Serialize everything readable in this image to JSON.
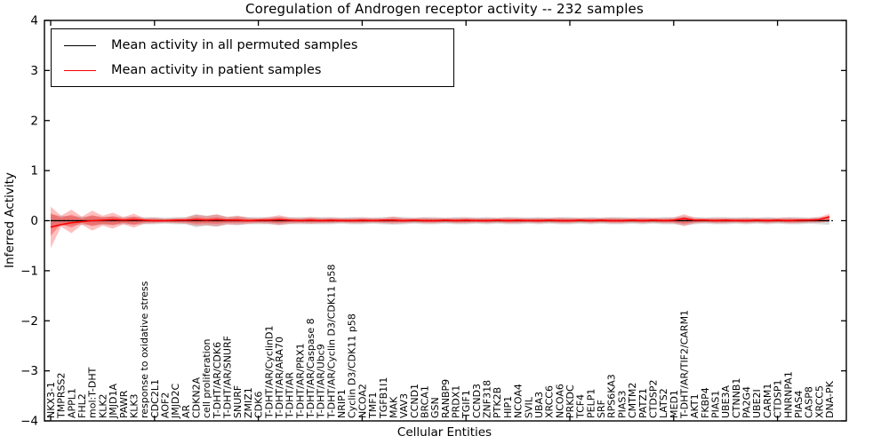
{
  "chart_data": {
    "type": "line",
    "title": "Coregulation of Androgen receptor activity -- 232 samples",
    "xlabel": "Cellular Entities",
    "ylabel": "Inferred Activity",
    "ylim": [
      -4,
      4
    ],
    "grid": false,
    "y_tick_values": [
      4,
      3,
      2,
      1,
      0,
      -1,
      -2,
      -3,
      -4
    ],
    "y_tick_labels": [
      "4",
      "3",
      "2",
      "1",
      "0",
      "−1",
      "−2",
      "−3",
      "−4"
    ],
    "categories": [
      "NKX3-1",
      "TMPRSS2",
      "APPL1",
      "FHL2",
      "mol:T-DHT",
      "KLK2",
      "JMJD1A",
      "PAWR",
      "KLK3",
      "response to oxidative stress",
      "CDC2L1",
      "AOF2",
      "JMJD2C",
      "AR",
      "CDKN2A",
      "cell proliferation",
      "T-DHT/AR/CDK6",
      "T-DHT/AR/SNURF",
      "SNURF",
      "ZMIZ1",
      "CDK6",
      "T-DHT/AR/CyclinD1",
      "T-DHT/AR/ARA70",
      "T-DHT/AR",
      "T-DHT/AR/PRX1",
      "T-DHT/AR/Caspase 8",
      "T-DHT/AR/Ubc9",
      "T-DHT/AR/Cyclin D3/CDK11 p58",
      "NRIP1",
      "Cyclin D3/CDK11 p58",
      "NCOA2",
      "TMF1",
      "TGFB1I1",
      "MAK",
      "VAV3",
      "CCND1",
      "BRCA1",
      "GSN",
      "RANBP9",
      "PRDX1",
      "TGIF1",
      "CCND3",
      "ZNF318",
      "PTK2B",
      "HIP1",
      "NCOA4",
      "SVIL",
      "UBA3",
      "XRCC6",
      "NCOA6",
      "PRKDC",
      "TCF4",
      "PELP1",
      "SRF",
      "RPS6KA3",
      "PIAS3",
      "CMTM2",
      "PATZ1",
      "CTDSP2",
      "LATS2",
      "MED1",
      "T-DHT/AR/TIF2/CARM1",
      "AKT1",
      "FKBP4",
      "PIAS1",
      "UBE3A",
      "CTNNB1",
      "PA2G4",
      "UBE2I",
      "CARM1",
      "CTDSP1",
      "HNRNPA1",
      "PIAS4",
      "CASP8",
      "XRCC5",
      "DNA-PK"
    ],
    "series": [
      {
        "name": "Mean activity in all permuted samples",
        "color": "#000000",
        "values": [
          0,
          0,
          0,
          0,
          0,
          0,
          0,
          0,
          0,
          0,
          0,
          0,
          0,
          0,
          0,
          0,
          0,
          0,
          0,
          0,
          0,
          0,
          0,
          0,
          0,
          0,
          0,
          0,
          0,
          0,
          0,
          0,
          0,
          0,
          0,
          0,
          0,
          0,
          0,
          0,
          0,
          0,
          0,
          0,
          0,
          0,
          0,
          0,
          0,
          0,
          0,
          0,
          0,
          0,
          0,
          0,
          0,
          0,
          0,
          0,
          0,
          0,
          0,
          0,
          0,
          0,
          0,
          0,
          0,
          0,
          0,
          0,
          0,
          0,
          0,
          0
        ]
      },
      {
        "name": "Mean activity in patient samples",
        "color": "#ff0000",
        "values": [
          -0.13,
          -0.08,
          -0.04,
          -0.02,
          0,
          0.01,
          0.02,
          0.01,
          0.02,
          0.01,
          0,
          0,
          0.01,
          0.01,
          0.02,
          0.01,
          0.02,
          0.01,
          0.01,
          0,
          0.01,
          0.01,
          0.02,
          0.01,
          0,
          0.01,
          0,
          0.01,
          0,
          0,
          0.01,
          0,
          0.01,
          0.01,
          0,
          0.01,
          0,
          0,
          0.01,
          0,
          0.01,
          0,
          0,
          0.01,
          0,
          0.01,
          0,
          0,
          0.01,
          0,
          0,
          0.01,
          0,
          0.01,
          0,
          0,
          0.01,
          0,
          0.01,
          0,
          0.01,
          0.04,
          0.01,
          0.01,
          0,
          0.01,
          0,
          0,
          0.01,
          0,
          0.01,
          0,
          0.01,
          0.01,
          0.02,
          0.08
        ]
      }
    ],
    "bands": [
      {
        "name": "permuted-samples-spread",
        "color": "#d9d9d9",
        "opacity": 1,
        "upper": [
          0.12,
          0.1,
          0.09,
          0.08,
          0.09,
          0.08,
          0.08,
          0.07,
          0.08,
          0.07,
          0.07,
          0.06,
          0.07,
          0.07,
          0.13,
          0.1,
          0.12,
          0.08,
          0.09,
          0.07,
          0.07,
          0.07,
          0.08,
          0.07,
          0.07,
          0.07,
          0.07,
          0.07,
          0.06,
          0.07,
          0.07,
          0.06,
          0.07,
          0.08,
          0.07,
          0.06,
          0.07,
          0.07,
          0.06,
          0.07,
          0.07,
          0.06,
          0.07,
          0.06,
          0.07,
          0.07,
          0.06,
          0.07,
          0.06,
          0.07,
          0.07,
          0.06,
          0.07,
          0.06,
          0.07,
          0.07,
          0.06,
          0.07,
          0.06,
          0.07,
          0.07,
          0.09,
          0.07,
          0.06,
          0.07,
          0.07,
          0.06,
          0.07,
          0.06,
          0.07,
          0.06,
          0.07,
          0.07,
          0.06,
          0.07,
          0.08
        ],
        "lower": [
          -0.12,
          -0.1,
          -0.09,
          -0.08,
          -0.09,
          -0.08,
          -0.08,
          -0.07,
          -0.08,
          -0.07,
          -0.07,
          -0.06,
          -0.07,
          -0.07,
          -0.13,
          -0.1,
          -0.12,
          -0.08,
          -0.09,
          -0.07,
          -0.07,
          -0.07,
          -0.08,
          -0.07,
          -0.07,
          -0.07,
          -0.07,
          -0.07,
          -0.06,
          -0.07,
          -0.07,
          -0.06,
          -0.07,
          -0.08,
          -0.07,
          -0.06,
          -0.07,
          -0.07,
          -0.06,
          -0.07,
          -0.07,
          -0.06,
          -0.07,
          -0.06,
          -0.07,
          -0.07,
          -0.06,
          -0.07,
          -0.06,
          -0.07,
          -0.07,
          -0.06,
          -0.07,
          -0.06,
          -0.07,
          -0.07,
          -0.06,
          -0.07,
          -0.06,
          -0.07,
          -0.07,
          -0.09,
          -0.07,
          -0.06,
          -0.07,
          -0.07,
          -0.06,
          -0.07,
          -0.06,
          -0.07,
          -0.06,
          -0.07,
          -0.07,
          -0.06,
          -0.07,
          -0.08
        ]
      },
      {
        "name": "patient-samples-spread-outer",
        "color": "#ff0000",
        "opacity": 0.25,
        "upper": [
          0.28,
          0.1,
          0.22,
          0.08,
          0.2,
          0.1,
          0.16,
          0.07,
          0.14,
          0.05,
          0.06,
          0.04,
          0.05,
          0.06,
          0.12,
          0.09,
          0.13,
          0.07,
          0.1,
          0.06,
          0.05,
          0.07,
          0.11,
          0.06,
          0.05,
          0.07,
          0.05,
          0.06,
          0.05,
          0.05,
          0.06,
          0.05,
          0.05,
          0.08,
          0.05,
          0.05,
          0.06,
          0.05,
          0.05,
          0.05,
          0.06,
          0.05,
          0.05,
          0.05,
          0.06,
          0.05,
          0.05,
          0.05,
          0.05,
          0.06,
          0.05,
          0.05,
          0.05,
          0.05,
          0.06,
          0.05,
          0.05,
          0.05,
          0.05,
          0.05,
          0.06,
          0.13,
          0.06,
          0.05,
          0.05,
          0.05,
          0.05,
          0.05,
          0.05,
          0.05,
          0.05,
          0.06,
          0.05,
          0.05,
          0.07,
          0.14
        ],
        "lower": [
          -0.55,
          -0.12,
          -0.25,
          -0.08,
          -0.2,
          -0.1,
          -0.16,
          -0.07,
          -0.14,
          -0.06,
          -0.05,
          -0.04,
          -0.05,
          -0.06,
          -0.1,
          -0.09,
          -0.11,
          -0.07,
          -0.08,
          -0.06,
          -0.05,
          -0.06,
          -0.09,
          -0.06,
          -0.05,
          -0.06,
          -0.05,
          -0.05,
          -0.04,
          -0.05,
          -0.05,
          -0.04,
          -0.05,
          -0.06,
          -0.05,
          -0.04,
          -0.05,
          -0.05,
          -0.04,
          -0.05,
          -0.05,
          -0.04,
          -0.05,
          -0.04,
          -0.05,
          -0.05,
          -0.04,
          -0.05,
          -0.04,
          -0.05,
          -0.05,
          -0.04,
          -0.05,
          -0.04,
          -0.05,
          -0.05,
          -0.04,
          -0.05,
          -0.04,
          -0.05,
          -0.05,
          -0.11,
          -0.05,
          -0.04,
          -0.05,
          -0.05,
          -0.04,
          -0.05,
          -0.04,
          -0.05,
          -0.04,
          -0.05,
          -0.05,
          -0.04,
          -0.04,
          -0.02
        ]
      },
      {
        "name": "patient-samples-spread-inner",
        "color": "#ff0000",
        "opacity": 0.3,
        "upper": [
          0.15,
          0.06,
          0.12,
          0.04,
          0.11,
          0.06,
          0.09,
          0.04,
          0.08,
          0.03,
          0.03,
          0.02,
          0.03,
          0.03,
          0.07,
          0.05,
          0.07,
          0.04,
          0.06,
          0.03,
          0.03,
          0.04,
          0.06,
          0.03,
          0.03,
          0.04,
          0.03,
          0.03,
          0.03,
          0.03,
          0.03,
          0.03,
          0.03,
          0.04,
          0.03,
          0.03,
          0.03,
          0.03,
          0.03,
          0.03,
          0.03,
          0.03,
          0.03,
          0.03,
          0.03,
          0.03,
          0.03,
          0.03,
          0.03,
          0.03,
          0.03,
          0.03,
          0.03,
          0.03,
          0.03,
          0.03,
          0.03,
          0.03,
          0.03,
          0.03,
          0.03,
          0.07,
          0.03,
          0.03,
          0.03,
          0.03,
          0.03,
          0.03,
          0.03,
          0.03,
          0.03,
          0.03,
          0.03,
          0.03,
          0.04,
          0.08
        ],
        "lower": [
          -0.3,
          -0.07,
          -0.14,
          -0.04,
          -0.11,
          -0.06,
          -0.09,
          -0.04,
          -0.08,
          -0.03,
          -0.03,
          -0.02,
          -0.03,
          -0.03,
          -0.06,
          -0.05,
          -0.06,
          -0.04,
          -0.04,
          -0.03,
          -0.03,
          -0.03,
          -0.05,
          -0.03,
          -0.03,
          -0.03,
          -0.03,
          -0.03,
          -0.02,
          -0.03,
          -0.03,
          -0.02,
          -0.03,
          -0.03,
          -0.03,
          -0.02,
          -0.03,
          -0.03,
          -0.02,
          -0.03,
          -0.03,
          -0.02,
          -0.03,
          -0.02,
          -0.03,
          -0.03,
          -0.02,
          -0.03,
          -0.02,
          -0.03,
          -0.03,
          -0.02,
          -0.03,
          -0.02,
          -0.03,
          -0.03,
          -0.02,
          -0.03,
          -0.02,
          -0.03,
          -0.03,
          -0.06,
          -0.03,
          -0.02,
          -0.03,
          -0.03,
          -0.02,
          -0.03,
          -0.02,
          -0.03,
          -0.02,
          -0.03,
          -0.03,
          -0.02,
          -0.02,
          -0.01
        ]
      }
    ],
    "zero_line": {
      "value": 0,
      "style": "dotted",
      "color": "#000000"
    },
    "legend": {
      "position": "upper left",
      "entries": [
        {
          "label": "Mean activity in all permuted samples",
          "color": "#000000"
        },
        {
          "label": "Mean activity in patient samples",
          "color": "#ff0000"
        }
      ]
    }
  }
}
